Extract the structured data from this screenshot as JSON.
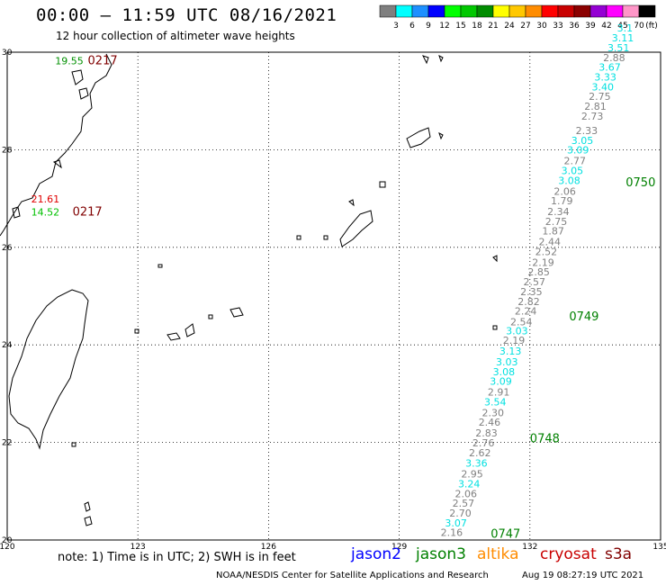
{
  "header": {
    "title": "00:00 – 11:59 UTC 08/16/2021",
    "subtitle": "12 hour collection of altimeter wave heights"
  },
  "colorbar": {
    "labels": [
      "3",
      "6",
      "9",
      "12",
      "15",
      "18",
      "21",
      "24",
      "27",
      "30",
      "33",
      "36",
      "39",
      "42",
      "45",
      "70"
    ],
    "unit": "(ft)",
    "colors": [
      "#7f7f7f",
      "#00ffff",
      "#1e90ff",
      "#0000ff",
      "#00ff00",
      "#00c800",
      "#008c00",
      "#ffff00",
      "#ffc800",
      "#ff8c00",
      "#ff0000",
      "#c80000",
      "#8b0000",
      "#9400d3",
      "#ff00ff",
      "#ff96c8",
      "#000000"
    ]
  },
  "map": {
    "x_range": [
      120,
      135
    ],
    "y_range": [
      20,
      30
    ],
    "x_ticks": [
      "120",
      "123",
      "126",
      "129",
      "132",
      "135"
    ],
    "y_ticks": [
      "30",
      "28",
      "26",
      "24",
      "22",
      "20"
    ]
  },
  "tracks": [
    {
      "time_label": "0747",
      "passes": [
        {
          "time": "0747",
          "lon": 131.1,
          "lat": 20.05
        },
        {
          "time": "0748",
          "lon": 132.0,
          "lat": 22.0
        },
        {
          "time": "0749",
          "lon": 132.9,
          "lat": 24.5
        },
        {
          "time": "0750",
          "lon": 134.2,
          "lat": 27.25
        }
      ]
    }
  ],
  "swh_points": [
    {
      "v": "2.16",
      "lon": 129.95,
      "lat": 20.08,
      "c": "#808080"
    },
    {
      "v": "3.07",
      "lon": 130.05,
      "lat": 20.28,
      "c": "#00e0e0"
    },
    {
      "v": "2.70",
      "lon": 130.15,
      "lat": 20.48,
      "c": "#808080"
    },
    {
      "v": "2.57",
      "lon": 130.22,
      "lat": 20.68,
      "c": "#808080"
    },
    {
      "v": "2.06",
      "lon": 130.28,
      "lat": 20.88,
      "c": "#808080"
    },
    {
      "v": "3.24",
      "lon": 130.35,
      "lat": 21.08,
      "c": "#00e0e0"
    },
    {
      "v": "2.95",
      "lon": 130.42,
      "lat": 21.28,
      "c": "#808080"
    },
    {
      "v": "3.36",
      "lon": 130.52,
      "lat": 21.5,
      "c": "#00e0e0"
    },
    {
      "v": "2.62",
      "lon": 130.6,
      "lat": 21.72,
      "c": "#808080"
    },
    {
      "v": "2.76",
      "lon": 130.68,
      "lat": 21.92,
      "c": "#808080"
    },
    {
      "v": "2.83",
      "lon": 130.75,
      "lat": 22.12,
      "c": "#808080"
    },
    {
      "v": "2.46",
      "lon": 130.82,
      "lat": 22.34,
      "c": "#808080"
    },
    {
      "v": "2.30",
      "lon": 130.9,
      "lat": 22.54,
      "c": "#808080"
    },
    {
      "v": "3.54",
      "lon": 130.95,
      "lat": 22.76,
      "c": "#00e0e0"
    },
    {
      "v": "2.91",
      "lon": 131.03,
      "lat": 22.96,
      "c": "#808080"
    },
    {
      "v": "3.09",
      "lon": 131.08,
      "lat": 23.18,
      "c": "#00e0e0"
    },
    {
      "v": "3.08",
      "lon": 131.15,
      "lat": 23.38,
      "c": "#00e0e0"
    },
    {
      "v": "3.03",
      "lon": 131.22,
      "lat": 23.58,
      "c": "#00e0e0"
    },
    {
      "v": "3.13",
      "lon": 131.3,
      "lat": 23.8,
      "c": "#00e0e0"
    },
    {
      "v": "2.19",
      "lon": 131.38,
      "lat": 24.02,
      "c": "#808080"
    },
    {
      "v": "3.03",
      "lon": 131.45,
      "lat": 24.22,
      "c": "#00e0e0"
    },
    {
      "v": "2.54",
      "lon": 131.55,
      "lat": 24.4,
      "c": "#808080"
    },
    {
      "v": "2.24",
      "lon": 131.65,
      "lat": 24.62,
      "c": "#808080"
    },
    {
      "v": "2.82",
      "lon": 131.72,
      "lat": 24.82,
      "c": "#808080"
    },
    {
      "v": "2.35",
      "lon": 131.78,
      "lat": 25.02,
      "c": "#808080"
    },
    {
      "v": "2.57",
      "lon": 131.85,
      "lat": 25.22,
      "c": "#808080"
    },
    {
      "v": "2.85",
      "lon": 131.95,
      "lat": 25.42,
      "c": "#808080"
    },
    {
      "v": "2.19",
      "lon": 132.05,
      "lat": 25.62,
      "c": "#808080"
    },
    {
      "v": "2.52",
      "lon": 132.12,
      "lat": 25.84,
      "c": "#808080"
    },
    {
      "v": "2.44",
      "lon": 132.2,
      "lat": 26.04,
      "c": "#808080"
    },
    {
      "v": "1.87",
      "lon": 132.28,
      "lat": 26.26,
      "c": "#808080"
    },
    {
      "v": "2.75",
      "lon": 132.35,
      "lat": 26.46,
      "c": "#808080"
    },
    {
      "v": "2.34",
      "lon": 132.4,
      "lat": 26.66,
      "c": "#808080"
    },
    {
      "v": "1.79",
      "lon": 132.48,
      "lat": 26.88,
      "c": "#808080"
    },
    {
      "v": "2.06",
      "lon": 132.55,
      "lat": 27.08,
      "c": "#808080"
    },
    {
      "v": "3.08",
      "lon": 132.65,
      "lat": 27.3,
      "c": "#00e0e0"
    },
    {
      "v": "3.05",
      "lon": 132.72,
      "lat": 27.5,
      "c": "#00e0e0"
    },
    {
      "v": "2.77",
      "lon": 132.78,
      "lat": 27.7,
      "c": "#808080"
    },
    {
      "v": "3.09",
      "lon": 132.85,
      "lat": 27.92,
      "c": "#00e0e0"
    },
    {
      "v": "3.05",
      "lon": 132.95,
      "lat": 28.12,
      "c": "#00e0e0"
    },
    {
      "v": "2.33",
      "lon": 133.05,
      "lat": 28.32,
      "c": "#808080"
    },
    {
      "v": "2.73",
      "lon": 133.18,
      "lat": 28.62,
      "c": "#808080"
    },
    {
      "v": "2.81",
      "lon": 133.25,
      "lat": 28.82,
      "c": "#808080"
    },
    {
      "v": "2.75",
      "lon": 133.35,
      "lat": 29.02,
      "c": "#808080"
    },
    {
      "v": "3.40",
      "lon": 133.42,
      "lat": 29.22,
      "c": "#00e0e0"
    },
    {
      "v": "3.33",
      "lon": 133.48,
      "lat": 29.42,
      "c": "#00e0e0"
    },
    {
      "v": "3.67",
      "lon": 133.58,
      "lat": 29.62,
      "c": "#00e0e0"
    },
    {
      "v": "2.88",
      "lon": 133.68,
      "lat": 29.82,
      "c": "#808080"
    },
    {
      "v": "3.51",
      "lon": 133.78,
      "lat": 30.02,
      "c": "#00e0e0"
    },
    {
      "v": "3.11",
      "lon": 133.88,
      "lat": 30.22,
      "c": "#00e0e0"
    },
    {
      "v": "3.1",
      "lon": 134.0,
      "lat": 30.42,
      "c": "#00e0e0"
    }
  ],
  "west_labels": [
    {
      "v": "19.55",
      "lon": 121.1,
      "lat": 29.75,
      "c": "#009000",
      "size": 11
    },
    {
      "v": "0217",
      "lon": 121.85,
      "lat": 29.75,
      "c": "#800000",
      "size": 13
    },
    {
      "v": "21.61",
      "lon": 120.55,
      "lat": 26.92,
      "c": "#e00000",
      "size": 11
    },
    {
      "v": "14.52",
      "lon": 120.55,
      "lat": 26.65,
      "c": "#00c000",
      "size": 11
    },
    {
      "v": "0217",
      "lon": 121.5,
      "lat": 26.65,
      "c": "#800000",
      "size": 13
    }
  ],
  "footer": {
    "note": "note:  1) Time is in UTC;  2) SWH is in feet",
    "satellites": [
      {
        "name": "jason2",
        "color": "#0000ff"
      },
      {
        "name": "jason3",
        "color": "#008000"
      },
      {
        "name": "altika",
        "color": "#ff8c00"
      },
      {
        "name": "cryosat",
        "color": "#c80000"
      },
      {
        "name": "s3a",
        "color": "#800000"
      }
    ],
    "credit": "NOAA/NESDIS Center for Satellite Applications and Research",
    "timestamp": "Aug 19 08:27:19 UTC 2021"
  }
}
